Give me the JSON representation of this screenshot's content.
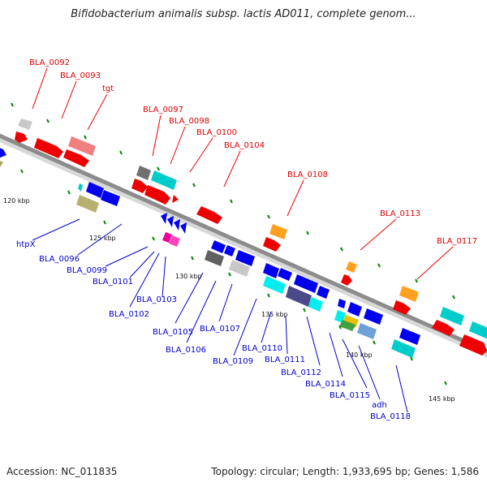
{
  "title": "Bifidobacterium animalis subsp. lactis AD011, complete genom...",
  "footer": {
    "accession": "Accession: NC_011835",
    "summary": "Topology: circular; Length: 1,933,695 bp; Genes: 1,586"
  },
  "colors": {
    "backbone": "#8c8c8c",
    "top_label": "#dd0000",
    "bottom_label": "#0000cc",
    "tick": "#008800"
  },
  "scale_labels": [
    "120 kbp",
    "125 kbp",
    "130 kbp",
    "135 kbp",
    "140 kbp",
    "145 kbp"
  ],
  "top_labels": [
    "BLA_0092",
    "BLA_0093",
    "tgt",
    "BLA_0097",
    "BLA_0098",
    "BLA_0100",
    "BLA_0104",
    "BLA_0108",
    "BLA_0113",
    "BLA_0117"
  ],
  "bottom_labels": [
    "htpX",
    "BLA_0096",
    "BLA_0099",
    "BLA_0101",
    "BLA_0102",
    "BLA_0103",
    "BLA_0105",
    "BLA_0106",
    "BLA_0107",
    "BLA_0109",
    "BLA_0110",
    "BLA_0111",
    "BLA_0112",
    "BLA_0114",
    "BLA_0115",
    "adh",
    "BLA_0118"
  ]
}
